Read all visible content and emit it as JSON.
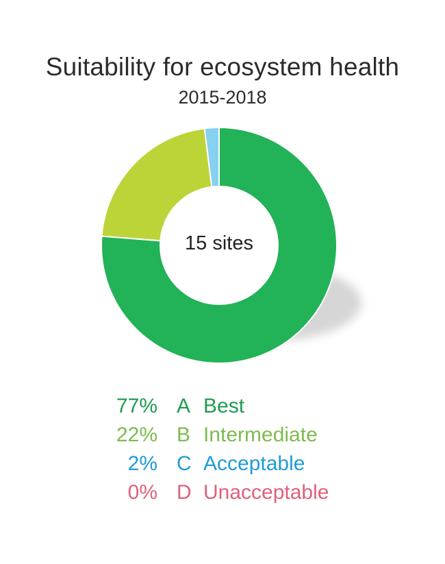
{
  "chart_data": {
    "type": "pie",
    "title": "Suitability for ecosystem health",
    "subtitle": "2015-2018",
    "center_label": "15 sites",
    "categories": [
      "A Best",
      "B Intermediate",
      "C Acceptable",
      "D Unacceptable"
    ],
    "values": [
      77,
      22,
      2,
      0
    ],
    "colors": [
      "#22b257",
      "#bcd438",
      "#86d0f0",
      "#e2727b"
    ],
    "legend": [
      {
        "pct": "77%",
        "letter": "A",
        "label": "Best",
        "color": "#1e9b4f"
      },
      {
        "pct": "22%",
        "letter": "B",
        "label": "Intermediate",
        "color": "#7dbb4e"
      },
      {
        "pct": "2%",
        "letter": "C",
        "label": "Acceptable",
        "color": "#1d9bd7"
      },
      {
        "pct": "0%",
        "letter": "D",
        "label": "Unacceptable",
        "color": "#e0607a"
      }
    ]
  }
}
